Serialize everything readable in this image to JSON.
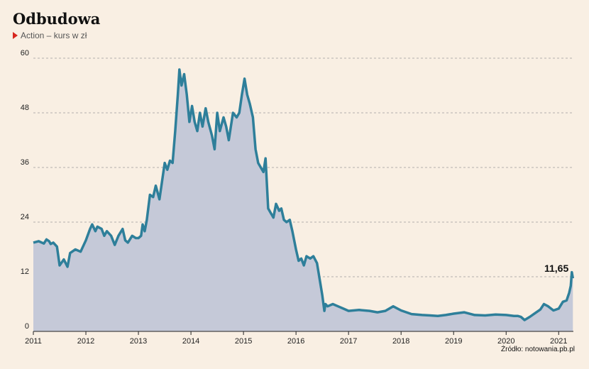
{
  "header": {
    "title": "Odbudowa",
    "subtitle": "Action – kurs w zł"
  },
  "source": "Źródło: notowania.pb.pl",
  "colors": {
    "background": "#f9efe3",
    "line": "#2e7f9a",
    "area": "#c5c9d8",
    "grid": "#9a9a9a",
    "accent": "#d7261e"
  },
  "chart_data": {
    "type": "area",
    "title": "Odbudowa",
    "subtitle": "Action – kurs w zł",
    "xlabel": "",
    "ylabel": "",
    "ylim": [
      0,
      60
    ],
    "xlim": [
      2011.0,
      2021.28
    ],
    "yticks": [
      0,
      12,
      24,
      36,
      48,
      60
    ],
    "xticks": [
      "2011",
      "2012",
      "2013",
      "2014",
      "2015",
      "2016",
      "2017",
      "2018",
      "2019",
      "2020",
      "2021"
    ],
    "grid": "horizontal dashed",
    "last_value_label": "11,65",
    "series": [
      {
        "x": [
          2011.0,
          2011.1,
          2011.2,
          2011.25,
          2011.3,
          2011.33,
          2011.38,
          2011.45,
          2011.5,
          2011.58,
          2011.65,
          2011.7,
          2011.8,
          2011.9,
          2012.0,
          2012.08,
          2012.12,
          2012.18,
          2012.22,
          2012.3,
          2012.35,
          2012.4,
          2012.48,
          2012.55,
          2012.62,
          2012.7,
          2012.75,
          2012.8,
          2012.88,
          2012.95,
          2013.0,
          2013.05,
          2013.08,
          2013.12,
          2013.16,
          2013.22,
          2013.28,
          2013.33,
          2013.4,
          2013.45,
          2013.5,
          2013.55,
          2013.6,
          2013.65,
          2013.7,
          2013.75,
          2013.78,
          2013.82,
          2013.87,
          2013.92,
          2013.97,
          2014.02,
          2014.07,
          2014.12,
          2014.17,
          2014.22,
          2014.28,
          2014.33,
          2014.4,
          2014.45,
          2014.5,
          2014.55,
          2014.62,
          2014.67,
          2014.72,
          2014.8,
          2014.87,
          2014.92,
          2014.97,
          2015.02,
          2015.07,
          2015.12,
          2015.18,
          2015.23,
          2015.28,
          2015.33,
          2015.38,
          2015.42,
          2015.47,
          2015.52,
          2015.57,
          2015.62,
          2015.68,
          2015.72,
          2015.77,
          2015.82,
          2015.88,
          2015.93,
          2016.0,
          2016.05,
          2016.1,
          2016.15,
          2016.2,
          2016.27,
          2016.33,
          2016.4,
          2016.45,
          2016.5,
          2016.54,
          2016.56,
          2016.6,
          2016.7,
          2016.8,
          2016.9,
          2017.0,
          2017.2,
          2017.4,
          2017.55,
          2017.7,
          2017.85,
          2018.0,
          2018.2,
          2018.4,
          2018.55,
          2018.7,
          2018.85,
          2019.0,
          2019.2,
          2019.4,
          2019.6,
          2019.8,
          2020.0,
          2020.15,
          2020.22,
          2020.28,
          2020.35,
          2020.45,
          2020.55,
          2020.65,
          2020.72,
          2020.8,
          2020.9,
          2021.0,
          2021.08,
          2021.15,
          2021.2,
          2021.23,
          2021.25,
          2021.27
        ],
        "values": [
          19.5,
          19.8,
          19.3,
          20.2,
          19.8,
          19.2,
          19.5,
          18.6,
          14.5,
          15.8,
          14.2,
          17.2,
          18.0,
          17.5,
          20.0,
          22.5,
          23.5,
          22.0,
          23.0,
          22.5,
          21.0,
          22.0,
          21.0,
          19.0,
          21.0,
          22.5,
          20.0,
          19.5,
          21.0,
          20.5,
          20.5,
          21.0,
          23.5,
          22.0,
          24.5,
          30.0,
          29.5,
          32.0,
          29.0,
          33.0,
          37.0,
          35.5,
          37.5,
          37.0,
          44.0,
          52.0,
          57.5,
          54.0,
          56.5,
          52.0,
          46.0,
          49.5,
          46.0,
          44.0,
          48.0,
          45.0,
          49.0,
          46.0,
          43.0,
          40.0,
          48.0,
          44.0,
          47.0,
          45.0,
          42.0,
          48.0,
          47.0,
          48.0,
          52.0,
          55.5,
          52.0,
          50.0,
          47.0,
          40.0,
          37.0,
          36.0,
          35.0,
          38.0,
          27.0,
          26.0,
          25.0,
          28.0,
          26.5,
          27.0,
          24.5,
          24.0,
          24.5,
          22.0,
          18.0,
          15.5,
          16.0,
          14.5,
          16.5,
          16.0,
          16.5,
          15.0,
          11.5,
          8.0,
          4.5,
          6.0,
          5.5,
          6.0,
          5.5,
          5.0,
          4.5,
          4.7,
          4.5,
          4.2,
          4.5,
          5.5,
          4.6,
          3.8,
          3.6,
          3.5,
          3.4,
          3.6,
          3.9,
          4.2,
          3.6,
          3.5,
          3.7,
          3.6,
          3.4,
          3.4,
          3.2,
          2.5,
          3.2,
          4.0,
          4.8,
          6.0,
          5.5,
          4.6,
          5.0,
          6.5,
          6.8,
          8.5,
          10.0,
          13.0,
          11.65
        ]
      }
    ]
  }
}
